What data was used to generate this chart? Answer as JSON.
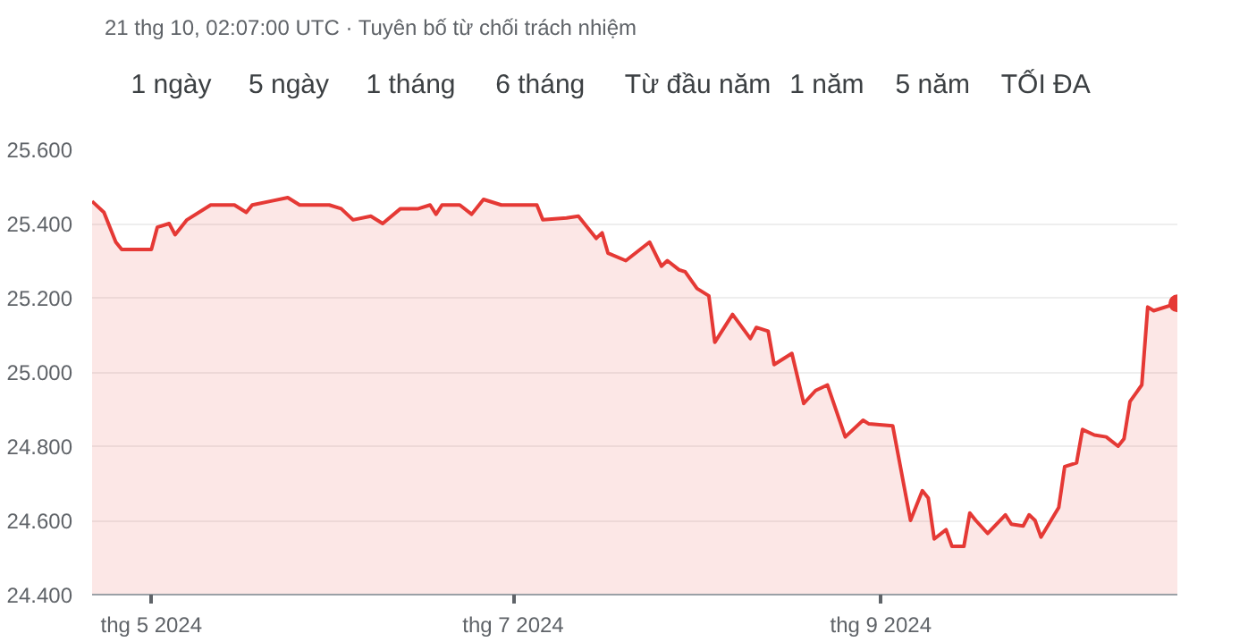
{
  "chart_data": {
    "type": "area",
    "subtitle": "21 thg 10, 02:07:00 UTC · Tuyên bố từ chối trách nhiệm",
    "annotations": [
      "1 ngày",
      "5 ngày",
      "1 tháng",
      "6 tháng",
      "Từ đầu năm",
      "1 năm",
      "5 năm",
      "TỐI ĐA"
    ],
    "x": [
      "2024-04-21",
      "2024-04-23",
      "2024-04-25",
      "2024-04-26",
      "2024-05-01",
      "2024-05-02",
      "2024-05-04",
      "2024-05-05",
      "2024-05-07",
      "2024-05-11",
      "2024-05-15",
      "2024-05-17",
      "2024-05-18",
      "2024-05-21",
      "2024-05-24",
      "2024-05-26",
      "2024-05-31",
      "2024-06-02",
      "2024-06-04",
      "2024-06-07",
      "2024-06-09",
      "2024-06-12",
      "2024-06-15",
      "2024-06-17",
      "2024-06-18",
      "2024-06-19",
      "2024-06-22",
      "2024-06-24",
      "2024-06-26",
      "2024-06-29",
      "2024-07-01",
      "2024-07-05",
      "2024-07-06",
      "2024-07-10",
      "2024-07-12",
      "2024-07-15",
      "2024-07-16",
      "2024-07-17",
      "2024-07-20",
      "2024-07-24",
      "2024-07-26",
      "2024-07-27",
      "2024-07-29",
      "2024-07-30",
      "2024-08-01",
      "2024-08-03",
      "2024-08-04",
      "2024-08-07",
      "2024-08-10",
      "2024-08-11",
      "2024-08-13",
      "2024-08-14",
      "2024-08-17",
      "2024-08-19",
      "2024-08-21",
      "2024-08-23",
      "2024-08-26",
      "2024-08-29",
      "2024-08-30",
      "2024-09-03",
      "2024-09-06",
      "2024-09-08",
      "2024-09-09",
      "2024-09-10",
      "2024-09-12",
      "2024-09-13",
      "2024-09-15",
      "2024-09-16",
      "2024-09-17",
      "2024-09-19",
      "2024-09-22",
      "2024-09-23",
      "2024-09-25",
      "2024-09-26",
      "2024-09-27",
      "2024-09-28",
      "2024-10-01",
      "2024-10-02",
      "2024-10-04",
      "2024-10-05",
      "2024-10-07",
      "2024-10-09",
      "2024-10-11",
      "2024-10-12",
      "2024-10-13",
      "2024-10-15",
      "2024-10-16",
      "2024-10-17",
      "2024-10-21"
    ],
    "series": [
      {
        "color": "#e53935",
        "values": [
          25460,
          25430,
          25350,
          25330,
          25330,
          25390,
          25400,
          25370,
          25410,
          25450,
          25450,
          25430,
          25450,
          25460,
          25470,
          25450,
          25450,
          25440,
          25410,
          25420,
          25400,
          25440,
          25440,
          25450,
          25425,
          25450,
          25450,
          25425,
          25465,
          25450,
          25450,
          25450,
          25410,
          25415,
          25420,
          25360,
          25375,
          25320,
          25300,
          25350,
          25285,
          25300,
          25275,
          25270,
          25225,
          25205,
          25080,
          25155,
          25090,
          25120,
          25110,
          25020,
          25050,
          24915,
          24950,
          24965,
          24825,
          24870,
          24860,
          24855,
          24600,
          24680,
          24660,
          24550,
          24575,
          24530,
          24530,
          24620,
          24600,
          24565,
          24615,
          24590,
          24585,
          24615,
          24600,
          24555,
          24635,
          24745,
          24755,
          24845,
          24830,
          24825,
          24800,
          24820,
          24920,
          24965,
          25175,
          25165,
          25185
        ]
      }
    ],
    "xlim": [
      "2024-04-21",
      "2024-10-21"
    ],
    "xticks": [
      {
        "value": "2024-05-01",
        "label": "thg 5 2024"
      },
      {
        "value": "2024-07-01",
        "label": "thg 7 2024"
      },
      {
        "value": "2024-09-01",
        "label": "thg 9 2024"
      }
    ],
    "ylim": [
      24400,
      25600
    ],
    "yticks": [
      {
        "value": 24400,
        "label": "24.400"
      },
      {
        "value": 24600,
        "label": "24.600"
      },
      {
        "value": 24800,
        "label": "24.800"
      },
      {
        "value": 25000,
        "label": "25.000"
      },
      {
        "value": 25200,
        "label": "25.200"
      },
      {
        "value": 25400,
        "label": "25.400"
      },
      {
        "value": 25600,
        "label": "25.600"
      }
    ],
    "grid": "y"
  }
}
